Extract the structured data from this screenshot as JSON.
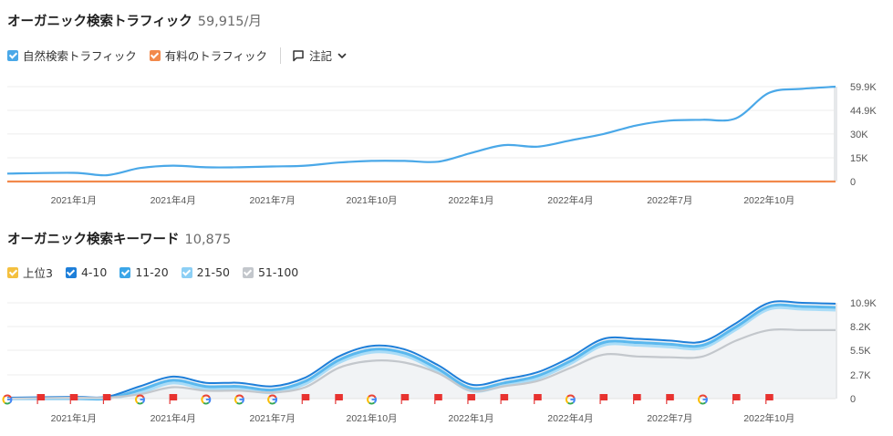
{
  "traffic": {
    "title": "オーガニック検索トラフィック",
    "metric": "59,915/月",
    "legend": [
      {
        "label": "自然検索トラフィック",
        "color": "#4aa8e8"
      },
      {
        "label": "有料のトラフィック",
        "color": "#f2894b"
      }
    ],
    "notes_label": "注記"
  },
  "keywords": {
    "title": "オーガニック検索キーワード",
    "metric": "10,875",
    "legend": [
      {
        "label": "上位3",
        "color": "#f4c03f"
      },
      {
        "label": "4-10",
        "color": "#1e7fd9"
      },
      {
        "label": "11-20",
        "color": "#3ba6e8"
      },
      {
        "label": "21-50",
        "color": "#8ccff5"
      },
      {
        "label": "51-100",
        "color": "#c3c7cc"
      }
    ]
  },
  "chart_data": [
    {
      "type": "line",
      "title": "オーガニック検索トラフィック",
      "x_ticks": [
        "2021年1月",
        "2021年4月",
        "2021年7月",
        "2021年10月",
        "2022年1月",
        "2022年4月",
        "2022年7月",
        "2022年10月"
      ],
      "x_range": [
        2020.833,
        2022.917
      ],
      "y_ticks": [
        "59.9K",
        "44.9K",
        "30K",
        "15K",
        "0"
      ],
      "y_tick_values": [
        59900,
        44900,
        30000,
        15000,
        0
      ],
      "ylim": [
        0,
        59900
      ],
      "series": [
        {
          "name": "自然検索トラフィック",
          "color": "#4aa8e8",
          "x": [
            2020.833,
            2021.0,
            2021.083,
            2021.167,
            2021.25,
            2021.333,
            2021.417,
            2021.5,
            2021.583,
            2021.667,
            2021.75,
            2021.833,
            2021.917,
            2022.0,
            2022.083,
            2022.167,
            2022.25,
            2022.333,
            2022.417,
            2022.5,
            2022.583,
            2022.667,
            2022.75,
            2022.833,
            2022.917
          ],
          "y": [
            5000,
            5500,
            4000,
            8500,
            10000,
            9000,
            9000,
            9500,
            10000,
            12000,
            13000,
            13000,
            12500,
            18000,
            23000,
            22000,
            26000,
            30000,
            35500,
            38500,
            39000,
            40000,
            56000,
            58500,
            59900
          ]
        },
        {
          "name": "有料のトラフィック",
          "color": "#f2894b",
          "x": [
            2020.833,
            2022.917
          ],
          "y": [
            0,
            0
          ]
        }
      ]
    },
    {
      "type": "area",
      "title": "オーガニック検索キーワード",
      "x_ticks": [
        "2021年1月",
        "2021年4月",
        "2021年7月",
        "2021年10月",
        "2022年1月",
        "2022年4月",
        "2022年7月",
        "2022年10月"
      ],
      "x_range": [
        2020.833,
        2022.917
      ],
      "y_ticks": [
        "10.9K",
        "8.2K",
        "5.5K",
        "2.7K",
        "0"
      ],
      "y_tick_values": [
        10900,
        8200,
        5500,
        2700,
        0
      ],
      "ylim": [
        0,
        10900
      ],
      "series": [
        {
          "name": "4-10",
          "color": "#1e7fd9",
          "x": [
            2020.833,
            2021.0,
            2021.083,
            2021.167,
            2021.25,
            2021.333,
            2021.417,
            2021.5,
            2021.583,
            2021.667,
            2021.75,
            2021.833,
            2021.917,
            2022.0,
            2022.083,
            2022.167,
            2022.25,
            2022.333,
            2022.417,
            2022.5,
            2022.583,
            2022.667,
            2022.75,
            2022.833,
            2022.917
          ],
          "y": [
            100,
            200,
            200,
            1400,
            2500,
            1800,
            1800,
            1400,
            2400,
            4800,
            6000,
            5600,
            3800,
            1600,
            2200,
            3000,
            4700,
            6800,
            6800,
            6600,
            6500,
            8600,
            10900,
            10900,
            10800
          ]
        },
        {
          "name": "51-100",
          "color": "#c3c7cc",
          "x": [
            2020.833,
            2021.0,
            2021.083,
            2021.167,
            2021.25,
            2021.333,
            2021.417,
            2021.5,
            2021.583,
            2021.667,
            2021.75,
            2021.833,
            2021.917,
            2022.0,
            2022.083,
            2022.167,
            2022.25,
            2022.333,
            2022.417,
            2022.5,
            2022.583,
            2022.667,
            2022.75,
            2022.833,
            2022.917
          ],
          "y": [
            0,
            100,
            100,
            500,
            1300,
            900,
            900,
            700,
            1300,
            3500,
            4300,
            4100,
            2900,
            900,
            1400,
            2000,
            3500,
            5000,
            4800,
            4700,
            4800,
            6600,
            7800,
            7800,
            7800
          ]
        }
      ],
      "markers": [
        {
          "x": 2020.833,
          "type": "google"
        },
        {
          "x": 2020.917,
          "type": "flag"
        },
        {
          "x": 2021.0,
          "type": "flag"
        },
        {
          "x": 2021.083,
          "type": "flag"
        },
        {
          "x": 2021.167,
          "type": "google"
        },
        {
          "x": 2021.25,
          "type": "flag"
        },
        {
          "x": 2021.333,
          "type": "google"
        },
        {
          "x": 2021.417,
          "type": "google"
        },
        {
          "x": 2021.5,
          "type": "google"
        },
        {
          "x": 2021.583,
          "type": "flag"
        },
        {
          "x": 2021.667,
          "type": "flag"
        },
        {
          "x": 2021.75,
          "type": "google"
        },
        {
          "x": 2021.833,
          "type": "flag"
        },
        {
          "x": 2021.917,
          "type": "flag"
        },
        {
          "x": 2022.0,
          "type": "flag"
        },
        {
          "x": 2022.083,
          "type": "flag"
        },
        {
          "x": 2022.167,
          "type": "flag"
        },
        {
          "x": 2022.25,
          "type": "google"
        },
        {
          "x": 2022.333,
          "type": "flag"
        },
        {
          "x": 2022.417,
          "type": "flag"
        },
        {
          "x": 2022.5,
          "type": "flag"
        },
        {
          "x": 2022.583,
          "type": "google"
        },
        {
          "x": 2022.667,
          "type": "flag"
        },
        {
          "x": 2022.75,
          "type": "flag"
        }
      ]
    }
  ]
}
